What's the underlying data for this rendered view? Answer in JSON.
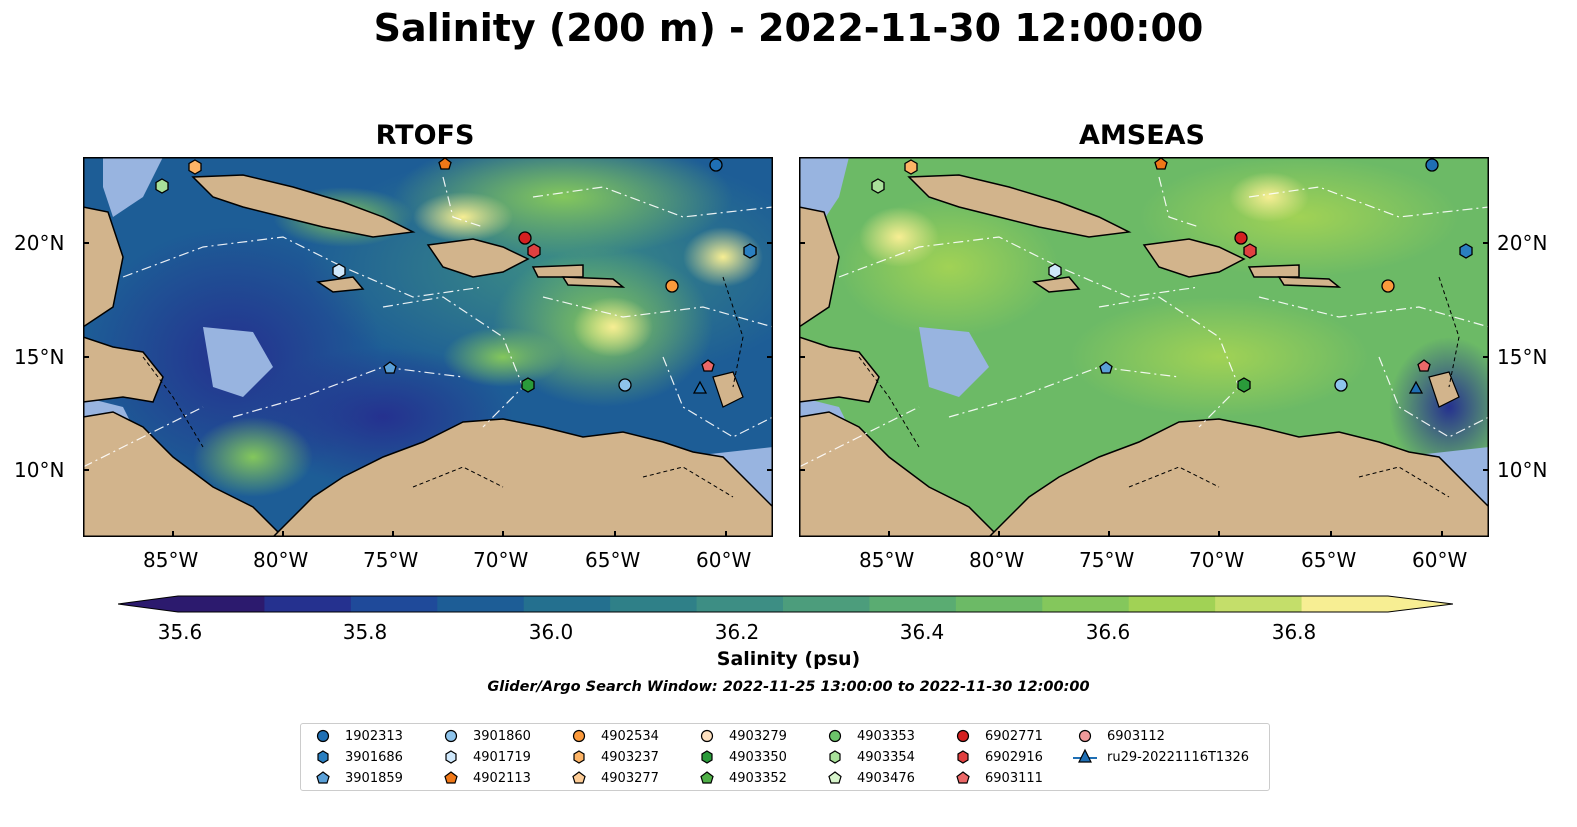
{
  "title": "Salinity (200 m) - 2022-11-30 12:00:00",
  "panels": [
    {
      "title": "RTOFS"
    },
    {
      "title": "AMSEAS"
    }
  ],
  "axes": {
    "lon_ticks": [
      "85°W",
      "80°W",
      "75°W",
      "70°W",
      "65°W",
      "60°W"
    ],
    "lat_ticks": [
      "20°N",
      "15°N",
      "10°N"
    ]
  },
  "colorbar": {
    "label": "Salinity (psu)",
    "ticks": [
      "35.6",
      "35.8",
      "36.0",
      "36.2",
      "36.4",
      "36.6",
      "36.8"
    ],
    "colors": [
      "#2c1a6e",
      "#25318f",
      "#1f4a9a",
      "#1d5d96",
      "#24708f",
      "#2f8088",
      "#3d8e84",
      "#4c9d7c",
      "#5aac72",
      "#6cba66",
      "#84c75c",
      "#a1d255",
      "#c4de6a",
      "#f7ee93"
    ]
  },
  "search_window": "Glider/Argo Search Window: 2022-11-25 13:00:00 to 2022-11-30 12:00:00",
  "legend": [
    {
      "label": "1902313",
      "marker": "circle",
      "color": "#1f6fb4"
    },
    {
      "label": "3901686",
      "marker": "hexagon",
      "color": "#2a7fc0"
    },
    {
      "label": "3901859",
      "marker": "pentagon",
      "color": "#5aa0d8"
    },
    {
      "label": "3901860",
      "marker": "circle",
      "color": "#8ec4ec"
    },
    {
      "label": "4901719",
      "marker": "hexagon",
      "color": "#cfe8fb"
    },
    {
      "label": "4902113",
      "marker": "pentagon",
      "color": "#f07818"
    },
    {
      "label": "4902534",
      "marker": "circle",
      "color": "#fb9a3c"
    },
    {
      "label": "4903237",
      "marker": "hexagon",
      "color": "#fdb466"
    },
    {
      "label": "4903277",
      "marker": "pentagon",
      "color": "#fdcc96"
    },
    {
      "label": "4903279",
      "marker": "circle",
      "color": "#fde0c0"
    },
    {
      "label": "4903350",
      "marker": "hexagon",
      "color": "#2a9a3a"
    },
    {
      "label": "4903352",
      "marker": "pentagon",
      "color": "#50b048"
    },
    {
      "label": "4903353",
      "marker": "circle",
      "color": "#6cc46a"
    },
    {
      "label": "4903354",
      "marker": "hexagon",
      "color": "#a8e09a"
    },
    {
      "label": "4903476",
      "marker": "pentagon",
      "color": "#d8f5cc"
    },
    {
      "label": "6902771",
      "marker": "circle",
      "color": "#d42020"
    },
    {
      "label": "6902916",
      "marker": "hexagon",
      "color": "#e04040"
    },
    {
      "label": "6903111",
      "marker": "pentagon",
      "color": "#ec6868"
    },
    {
      "label": "6903112",
      "marker": "circle",
      "color": "#f09a9a"
    },
    {
      "label": "ru29-20221116T1326",
      "marker": "triangle-line",
      "color": "#1f6fb4"
    }
  ],
  "colors": {
    "land": "#d2b48c",
    "shelf": "#98b4e0",
    "ocean_low": "#2c1a6e",
    "ocean_mid": "#5aac72",
    "ocean_high": "#f7ee93"
  }
}
